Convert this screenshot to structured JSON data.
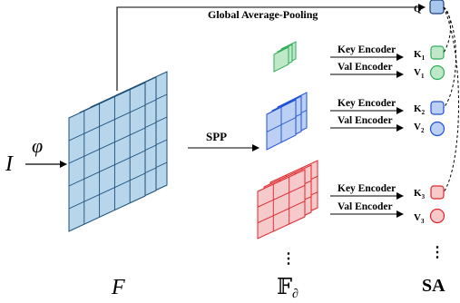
{
  "labels": {
    "global_pooling": "Global Average-Pooling",
    "spp": "SPP",
    "input": "I",
    "phi": "φ",
    "feature_map": "F",
    "pyramid_set": "𝔽",
    "pyramid_subscript": "∂",
    "sa": "SA",
    "query": "Q",
    "dots": "⋮"
  },
  "encoders": [
    {
      "key_label": "Key Encoder",
      "val_label": "Val Encoder",
      "key": "K",
      "val": "V",
      "index": "1",
      "color": "#2fae5a",
      "fill": "#bfe8c8"
    },
    {
      "key_label": "Key Encoder",
      "val_label": "Val Encoder",
      "key": "K",
      "val": "V",
      "index": "2",
      "color": "#1f4fd8",
      "fill": "#bcd0f3"
    },
    {
      "key_label": "Key Encoder",
      "val_label": "Val Encoder",
      "key": "K",
      "val": "V",
      "index": "3",
      "color": "#e0262b",
      "fill": "#f6c9cb"
    }
  ],
  "colors": {
    "feature_fill": "#b7d6ec",
    "feature_grid": "#1d4f78",
    "query_fill": "#a9c6ec",
    "query_stroke": "#1c3f78"
  }
}
